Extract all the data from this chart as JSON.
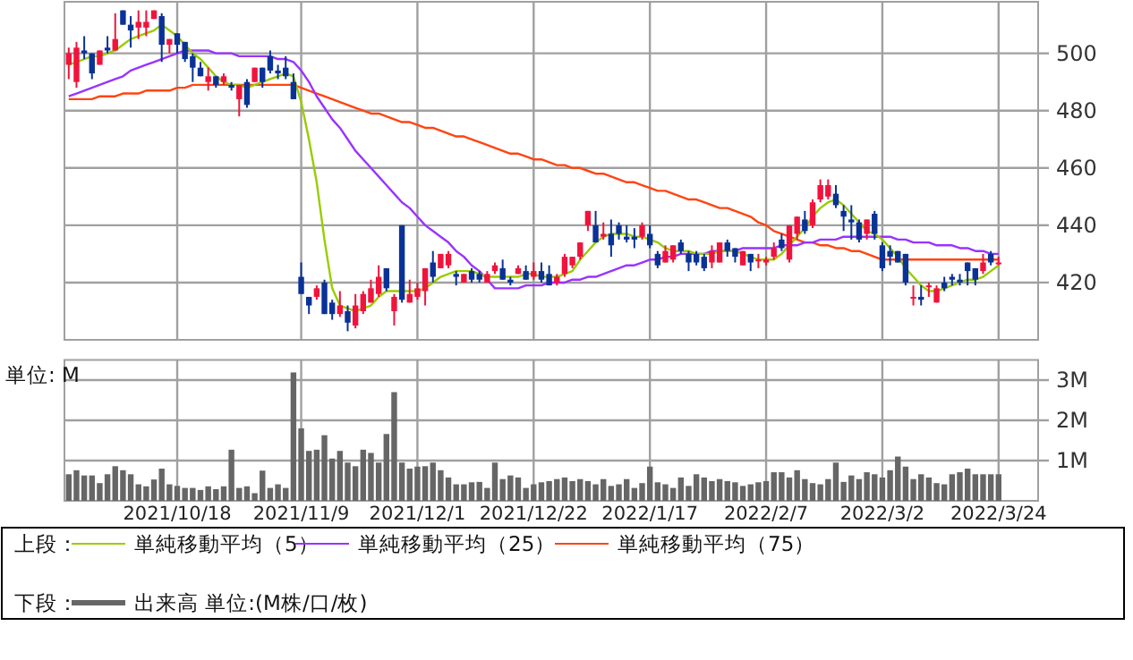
{
  "chart_data": [
    {
      "type": "candlestick",
      "legend_title": "上段：",
      "legend": "bottom",
      "grid": true,
      "tick_labels": "y",
      "categories": [
        null,
        null,
        null,
        null,
        null,
        null,
        null,
        null,
        null,
        null,
        null,
        null,
        null,
        null,
        "2021/10/18",
        null,
        null,
        null,
        null,
        null,
        null,
        null,
        null,
        null,
        null,
        null,
        null,
        null,
        null,
        null,
        "2021/11/9",
        null,
        null,
        null,
        null,
        null,
        null,
        null,
        null,
        null,
        null,
        null,
        null,
        null,
        null,
        "2021/12/1",
        null,
        null,
        null,
        null,
        null,
        null,
        null,
        null,
        null,
        null,
        null,
        null,
        null,
        null,
        "2021/12/22",
        null,
        null,
        null,
        null,
        null,
        null,
        null,
        null,
        null,
        null,
        null,
        null,
        null,
        null,
        "2022/1/17",
        null,
        null,
        null,
        null,
        null,
        null,
        null,
        null,
        null,
        null,
        null,
        null,
        null,
        null,
        "2022/2/7",
        null,
        null,
        null,
        null,
        null,
        null,
        null,
        null,
        null,
        null,
        null,
        null,
        null,
        null,
        "2022/3/2",
        null,
        null,
        null,
        null,
        null,
        null,
        null,
        null,
        null,
        null,
        null,
        null,
        null,
        null,
        "2022/3/24"
      ],
      "ylim": [
        400,
        518
      ],
      "yticks": [
        420,
        440,
        460,
        480,
        500
      ],
      "ohlc": [
        [
          496,
          502,
          491,
          500
        ],
        [
          490,
          504,
          488,
          502
        ],
        [
          501,
          506,
          498,
          500
        ],
        [
          500,
          500,
          491,
          493
        ],
        [
          496,
          501,
          496,
          501
        ],
        [
          502,
          506,
          500,
          501
        ],
        [
          501,
          514,
          501,
          505
        ],
        [
          515,
          515,
          510,
          510
        ],
        [
          510,
          513,
          502,
          508
        ],
        [
          509,
          515,
          505,
          511
        ],
        [
          509,
          515,
          506,
          511
        ],
        [
          512,
          515,
          512,
          515
        ],
        [
          513,
          514,
          497,
          503
        ],
        [
          503,
          505,
          500,
          505
        ],
        [
          507,
          507,
          500,
          503
        ],
        [
          504,
          504,
          497,
          498
        ],
        [
          499,
          500,
          490,
          495
        ],
        [
          495,
          497,
          492,
          492
        ],
        [
          490,
          495,
          487,
          492
        ],
        [
          492,
          492,
          488,
          489
        ],
        [
          490,
          493,
          489,
          492
        ],
        [
          489,
          490,
          487,
          488
        ],
        [
          484,
          489,
          478,
          489
        ],
        [
          490,
          491,
          481,
          482
        ],
        [
          490,
          495,
          490,
          495
        ],
        [
          495,
          495,
          488,
          490
        ],
        [
          499,
          501,
          493,
          494
        ],
        [
          494,
          496,
          491,
          493
        ],
        [
          495,
          499,
          491,
          492
        ],
        [
          490,
          493,
          484,
          484
        ],
        [
          422,
          427,
          416,
          416
        ],
        [
          415,
          415,
          409,
          412
        ],
        [
          415,
          419,
          414,
          418
        ],
        [
          420,
          421,
          409,
          409
        ],
        [
          413,
          414,
          407,
          409
        ],
        [
          409,
          417,
          408,
          412
        ],
        [
          410,
          412,
          403,
          406
        ],
        [
          405,
          416,
          404,
          412
        ],
        [
          410,
          417,
          409,
          416
        ],
        [
          413,
          421,
          413,
          418
        ],
        [
          416,
          426,
          415,
          422
        ],
        [
          425,
          425,
          417,
          418
        ],
        [
          410,
          416,
          405,
          415
        ],
        [
          440,
          440,
          413,
          414
        ],
        [
          413,
          421,
          413,
          416
        ],
        [
          415,
          420,
          414,
          418
        ],
        [
          417,
          425,
          412,
          425
        ],
        [
          427,
          431,
          420,
          422
        ],
        [
          425,
          430,
          425,
          430
        ],
        [
          426,
          431,
          425,
          430
        ],
        [
          423,
          424,
          419,
          422
        ],
        [
          420,
          423,
          420,
          423
        ],
        [
          424,
          425,
          420,
          421
        ],
        [
          423,
          424,
          420,
          421
        ],
        [
          420,
          424,
          420,
          423
        ],
        [
          424,
          427,
          423,
          426
        ],
        [
          425,
          428,
          421,
          421
        ],
        [
          421,
          422,
          419,
          420
        ],
        [
          423,
          426,
          423,
          425
        ],
        [
          424,
          426,
          421,
          421
        ],
        [
          422,
          427,
          421,
          424
        ],
        [
          424,
          427,
          420,
          421
        ],
        [
          423,
          426,
          419,
          419
        ],
        [
          420,
          423,
          419,
          422
        ],
        [
          423,
          430,
          422,
          429
        ],
        [
          426,
          429,
          425,
          429
        ],
        [
          429,
          434,
          428,
          434
        ],
        [
          440,
          445,
          438,
          445
        ],
        [
          440,
          445,
          434,
          434
        ],
        [
          436,
          441,
          435,
          437
        ],
        [
          437,
          442,
          429,
          433
        ],
        [
          440,
          441,
          435,
          437
        ],
        [
          436,
          440,
          434,
          435
        ],
        [
          436,
          439,
          432,
          435
        ],
        [
          436,
          441,
          435,
          440
        ],
        [
          437,
          440,
          432,
          433
        ],
        [
          430,
          431,
          425,
          426
        ],
        [
          427,
          433,
          427,
          431
        ],
        [
          428,
          433,
          427,
          433
        ],
        [
          434,
          435,
          430,
          431
        ],
        [
          430,
          431,
          424,
          427
        ],
        [
          430,
          431,
          426,
          427
        ],
        [
          429,
          430,
          424,
          425
        ],
        [
          427,
          433,
          425,
          431
        ],
        [
          427,
          434,
          427,
          434
        ],
        [
          434,
          435,
          429,
          431
        ],
        [
          432,
          432,
          427,
          429
        ],
        [
          426,
          431,
          426,
          431
        ],
        [
          430,
          430,
          424,
          427
        ],
        [
          428,
          430,
          425,
          428
        ],
        [
          427,
          429,
          426,
          428
        ],
        [
          429,
          434,
          428,
          432
        ],
        [
          435,
          437,
          431,
          432
        ],
        [
          428,
          440,
          427,
          440
        ],
        [
          437,
          443,
          435,
          443
        ],
        [
          442,
          445,
          437,
          438
        ],
        [
          440,
          449,
          439,
          448
        ],
        [
          449,
          456,
          448,
          454
        ],
        [
          450,
          456,
          449,
          454
        ],
        [
          451,
          454,
          446,
          447
        ],
        [
          445,
          447,
          438,
          443
        ],
        [
          442,
          447,
          435,
          441
        ],
        [
          441,
          442,
          434,
          435
        ],
        [
          437,
          442,
          435,
          442
        ],
        [
          444,
          445,
          435,
          437
        ],
        [
          433,
          434,
          424,
          425
        ],
        [
          431,
          433,
          426,
          429
        ],
        [
          431,
          431,
          427,
          427
        ],
        [
          430,
          430,
          419,
          420
        ],
        [
          415,
          419,
          412,
          415
        ],
        [
          415,
          419,
          412,
          414
        ],
        [
          419,
          420,
          415,
          419
        ],
        [
          413,
          419,
          413,
          418
        ],
        [
          420,
          422,
          417,
          418
        ],
        [
          422,
          423,
          419,
          421
        ],
        [
          421,
          423,
          419,
          420
        ],
        [
          427,
          427,
          419,
          424
        ],
        [
          425,
          425,
          419,
          421
        ],
        [
          424,
          430,
          423,
          427
        ],
        [
          430,
          431,
          426,
          427
        ],
        [
          427,
          429,
          426,
          427
        ]
      ],
      "series": [
        {
          "type": "line",
          "name": "単純移動平均（5）",
          "color": "#99cc00",
          "values": [
            496,
            497,
            498,
            499,
            499,
            500,
            501,
            503,
            505,
            506,
            507,
            508,
            510,
            508,
            506,
            503,
            500,
            498,
            495,
            492,
            490,
            489,
            489,
            488,
            489,
            490,
            491,
            492,
            493,
            492,
            483,
            470,
            455,
            435,
            418,
            412,
            411,
            410,
            411,
            412,
            415,
            417,
            417,
            417,
            417,
            417,
            418,
            420,
            422,
            423,
            424,
            424,
            424,
            423,
            422,
            422,
            422,
            422,
            422,
            423,
            423,
            422,
            422,
            422,
            423,
            424,
            428,
            431,
            434,
            436,
            437,
            437,
            437,
            436,
            436,
            435,
            434,
            432,
            431,
            431,
            431,
            430,
            430,
            430,
            431,
            431,
            431,
            430,
            429,
            428,
            428,
            428,
            430,
            433,
            436,
            439,
            443,
            446,
            448,
            449,
            447,
            444,
            441,
            438,
            437,
            435,
            432,
            429,
            425,
            422,
            419,
            417,
            417,
            418,
            419,
            420,
            421,
            421,
            422,
            424,
            426
          ]
        },
        {
          "type": "line",
          "name": "単純移動平均（25）",
          "color": "#9933ff",
          "values": [
            485,
            486,
            487,
            488,
            489,
            490,
            491,
            492,
            494,
            495,
            496,
            497,
            498,
            499,
            500,
            501,
            501,
            501,
            501,
            500,
            500,
            500,
            499,
            499,
            499,
            499,
            499,
            498,
            498,
            497,
            494,
            490,
            485,
            481,
            477,
            474,
            470,
            466,
            463,
            460,
            457,
            454,
            451,
            448,
            446,
            443,
            440,
            438,
            436,
            434,
            431,
            429,
            426,
            424,
            421,
            418,
            418,
            418,
            418,
            419,
            419,
            419,
            420,
            420,
            420,
            421,
            421,
            422,
            422,
            423,
            424,
            425,
            426,
            426,
            427,
            428,
            428,
            429,
            429,
            430,
            430,
            430,
            430,
            431,
            431,
            431,
            431,
            432,
            432,
            432,
            432,
            432,
            433,
            433,
            433,
            434,
            434,
            435,
            435,
            435,
            436,
            436,
            436,
            436,
            436,
            436,
            436,
            435,
            435,
            434,
            434,
            434,
            433,
            433,
            433,
            432,
            432,
            431,
            431,
            430,
            430
          ]
        },
        {
          "type": "line",
          "name": "単純移動平均（75）",
          "color": "#ff4411",
          "values": [
            484,
            484,
            484,
            484,
            485,
            485,
            485,
            486,
            486,
            486,
            487,
            487,
            487,
            487,
            488,
            488,
            489,
            489,
            489,
            489,
            489,
            489,
            489,
            489,
            489,
            489,
            489,
            489,
            489,
            489,
            488,
            487,
            486,
            485,
            484,
            483,
            482,
            481,
            480,
            479,
            479,
            478,
            477,
            476,
            476,
            475,
            474,
            474,
            473,
            472,
            471,
            471,
            470,
            469,
            468,
            467,
            466,
            465,
            465,
            464,
            463,
            463,
            462,
            461,
            461,
            460,
            460,
            459,
            458,
            458,
            457,
            456,
            455,
            455,
            454,
            453,
            452,
            452,
            451,
            450,
            449,
            449,
            448,
            447,
            446,
            446,
            445,
            444,
            443,
            441,
            440,
            438,
            437,
            436,
            435,
            434,
            434,
            433,
            433,
            432,
            432,
            431,
            431,
            430,
            429,
            428,
            428,
            428,
            428,
            428,
            428,
            428,
            428,
            428,
            428,
            428,
            428,
            428,
            428,
            428,
            428
          ]
        }
      ]
    },
    {
      "type": "bar",
      "legend_title": "下段：",
      "legend": "bottom",
      "grid": true,
      "annotations": [
        "単位: M"
      ],
      "categories": [
        null,
        null,
        null,
        null,
        null,
        null,
        null,
        null,
        null,
        null,
        null,
        null,
        null,
        null,
        "2021/10/18",
        null,
        null,
        null,
        null,
        null,
        null,
        null,
        null,
        null,
        null,
        null,
        null,
        null,
        null,
        null,
        "2021/11/9",
        null,
        null,
        null,
        null,
        null,
        null,
        null,
        null,
        null,
        null,
        null,
        null,
        null,
        null,
        "2021/12/1",
        null,
        null,
        null,
        null,
        null,
        null,
        null,
        null,
        null,
        null,
        null,
        null,
        null,
        null,
        "2021/12/22",
        null,
        null,
        null,
        null,
        null,
        null,
        null,
        null,
        null,
        null,
        null,
        null,
        null,
        null,
        "2022/1/17",
        null,
        null,
        null,
        null,
        null,
        null,
        null,
        null,
        null,
        null,
        null,
        null,
        null,
        null,
        "2022/2/7",
        null,
        null,
        null,
        null,
        null,
        null,
        null,
        null,
        null,
        null,
        null,
        null,
        null,
        null,
        "2022/3/2",
        null,
        null,
        null,
        null,
        null,
        null,
        null,
        null,
        null,
        null,
        null,
        null,
        null,
        null,
        "2022/3/24"
      ],
      "ylim": [
        0,
        3.5
      ],
      "yticks": [
        {
          "value": 1,
          "label": "1M"
        },
        {
          "value": 2,
          "label": "2M"
        },
        {
          "value": 3,
          "label": "3M"
        }
      ],
      "series": [
        {
          "name": "出来高 単位:(M株/口/枚)",
          "color": "#666666",
          "values": [
            0.66,
            0.76,
            0.63,
            0.63,
            0.44,
            0.66,
            0.86,
            0.76,
            0.66,
            0.41,
            0.36,
            0.53,
            0.8,
            0.41,
            0.37,
            0.32,
            0.32,
            0.27,
            0.36,
            0.29,
            0.36,
            1.27,
            0.32,
            0.36,
            0.19,
            0.75,
            0.32,
            0.41,
            0.32,
            3.19,
            1.8,
            1.24,
            1.27,
            1.63,
            1.05,
            1.24,
            0.95,
            0.86,
            1.27,
            1.19,
            0.95,
            1.66,
            2.7,
            0.95,
            0.8,
            0.85,
            0.86,
            0.95,
            0.76,
            0.58,
            0.41,
            0.41,
            0.46,
            0.47,
            0.32,
            0.95,
            0.54,
            0.63,
            0.58,
            0.32,
            0.41,
            0.46,
            0.49,
            0.54,
            0.58,
            0.49,
            0.54,
            0.49,
            0.41,
            0.54,
            0.37,
            0.41,
            0.54,
            0.32,
            0.44,
            0.85,
            0.46,
            0.41,
            0.32,
            0.58,
            0.37,
            0.66,
            0.58,
            0.49,
            0.54,
            0.49,
            0.46,
            0.37,
            0.41,
            0.46,
            0.49,
            0.71,
            0.71,
            0.58,
            0.76,
            0.54,
            0.44,
            0.41,
            0.54,
            0.95,
            0.47,
            0.63,
            0.54,
            0.71,
            0.66,
            0.58,
            0.76,
            1.1,
            0.85,
            0.54,
            0.66,
            0.58,
            0.44,
            0.41,
            0.66,
            0.71,
            0.8,
            0.66,
            0.66,
            0.66,
            0.66
          ]
        }
      ]
    }
  ]
}
